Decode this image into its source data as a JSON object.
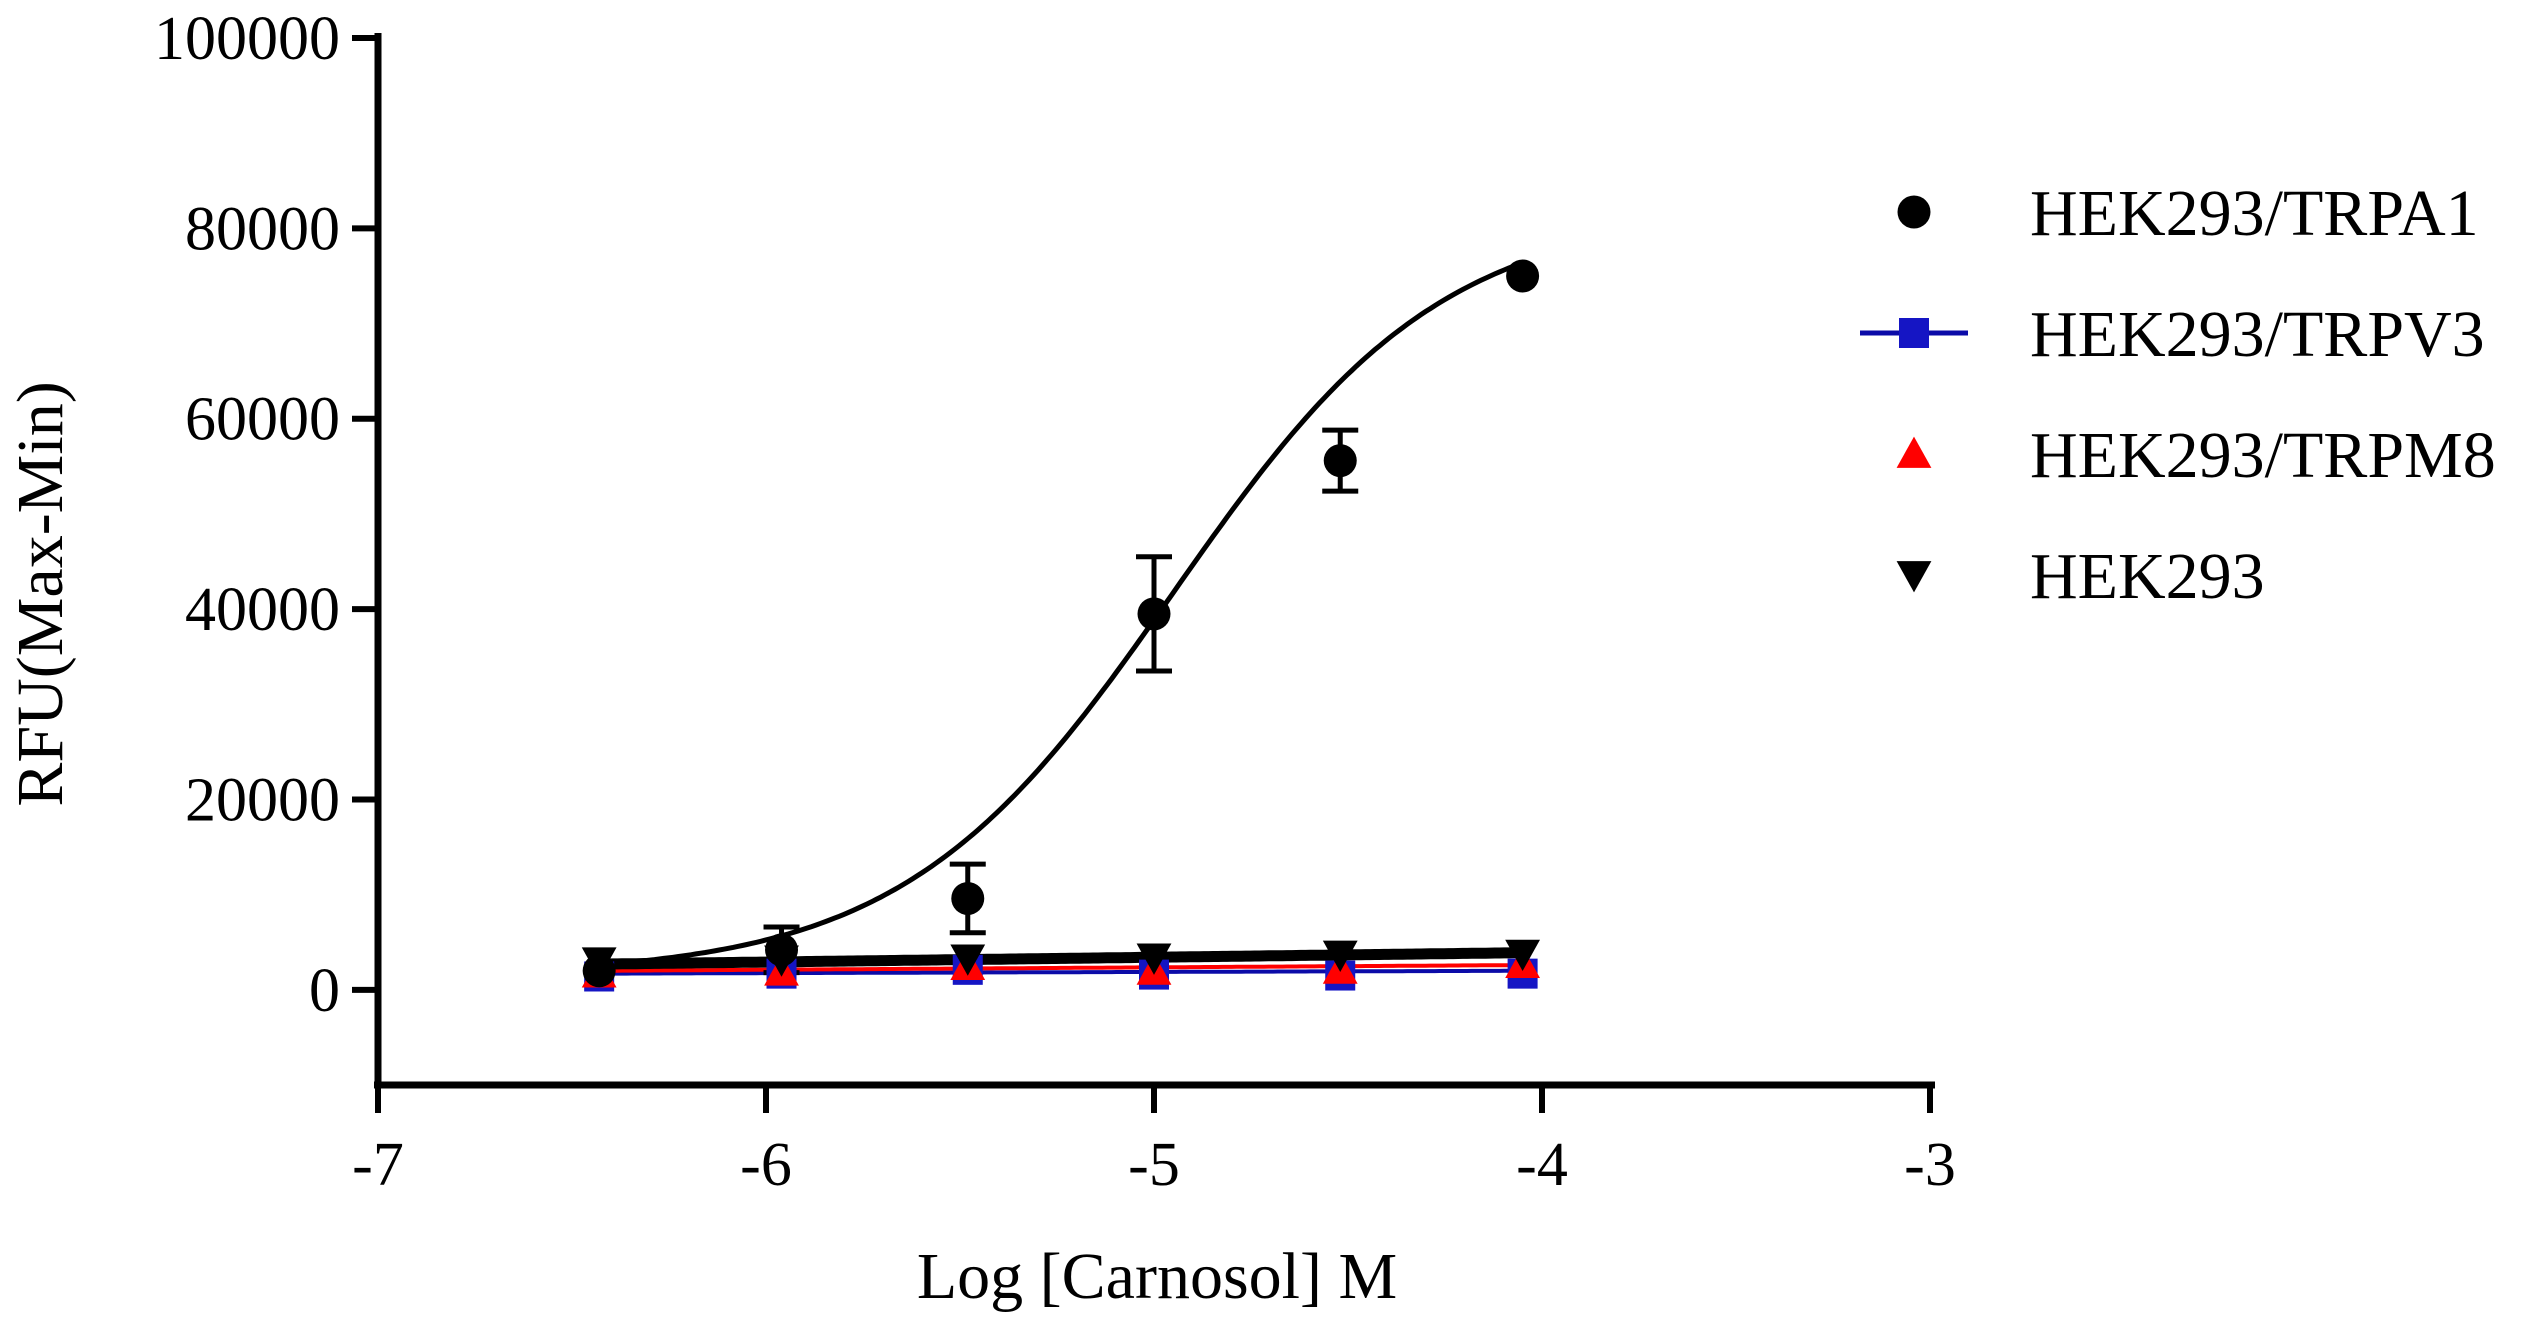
{
  "chart_data": {
    "type": "scatter",
    "title": "",
    "xlabel": "Log [Carnosol] M",
    "ylabel": "RFU(Max-Min)",
    "xlim": [
      -7,
      -3
    ],
    "ylim": [
      -10000,
      100000
    ],
    "x_ticks": [
      -7,
      -6,
      -5,
      -4,
      -3
    ],
    "x_tick_labels": [
      "-7",
      "-6",
      "-5",
      "-4",
      "-3"
    ],
    "y_ticks": [
      0,
      20000,
      40000,
      60000,
      80000,
      100000
    ],
    "y_tick_labels": [
      "0",
      "20000",
      "40000",
      "60000",
      "80000",
      "100000"
    ],
    "legend_position": "right",
    "series": [
      {
        "name": "HEK293/TRPA1",
        "marker": "circle",
        "color": "#000000",
        "line_color": "#000000",
        "x": [
          -6.43,
          -5.96,
          -5.48,
          -5.0,
          -4.52,
          -4.05
        ],
        "y": [
          2000,
          4200,
          9600,
          39500,
          55600,
          75000
        ],
        "error": [
          0,
          2400,
          3600,
          6000,
          3200,
          0
        ],
        "fit": {
          "bottom": 1500,
          "top": 82000,
          "logec50": -4.95,
          "hill": 1.25
        }
      },
      {
        "name": "HEK293/TRPV3",
        "marker": "square",
        "color": "#1515c4",
        "line_color": "#0b0ba8",
        "x": [
          -6.43,
          -5.96,
          -5.48,
          -5.0,
          -4.52,
          -4.05
        ],
        "y": [
          1400,
          1700,
          2100,
          1600,
          1500,
          1700
        ],
        "error": [
          0,
          0,
          0,
          0,
          0,
          0
        ],
        "fit": {
          "linear_from": 1700,
          "linear_to": 2000
        }
      },
      {
        "name": "HEK293/TRPM8",
        "marker": "triangle-up",
        "color": "#ff0000",
        "line_color": "#ff0000",
        "x": [
          -6.43,
          -5.96,
          -5.48,
          -5.0,
          -4.52,
          -4.05
        ],
        "y": [
          1700,
          1900,
          2500,
          2000,
          2100,
          2700
        ],
        "error": [
          0,
          0,
          0,
          0,
          0,
          0
        ],
        "fit": {
          "linear_from": 2000,
          "linear_to": 2600
        }
      },
      {
        "name": "HEK293",
        "marker": "triangle-down",
        "color": "#000000",
        "line_color": "#000000",
        "x": [
          -6.43,
          -5.96,
          -5.48,
          -5.0,
          -4.52,
          -4.05
        ],
        "y": [
          3000,
          3200,
          3300,
          3400,
          3700,
          3800
        ],
        "error": [
          0,
          0,
          0,
          0,
          0,
          0
        ],
        "fit": {
          "linear_from": 2700,
          "linear_to": 3900
        }
      }
    ]
  }
}
